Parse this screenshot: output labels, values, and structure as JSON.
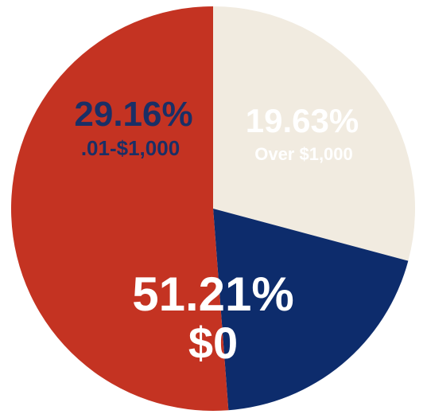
{
  "chart_data": {
    "type": "pie",
    "slices": [
      {
        "label": "$0",
        "value": 51.21,
        "display": "51.21%",
        "color": "#c43322",
        "text_color": "#ffffff"
      },
      {
        "label": ".01-$1,000",
        "value": 29.16,
        "display": "29.16%",
        "color": "#f1ebe0",
        "text_color": "#1a2f66"
      },
      {
        "label": "Over $1,000",
        "value": 19.63,
        "display": "19.63%",
        "color": "#0d2c6c",
        "text_color": "#ffffff"
      }
    ]
  }
}
